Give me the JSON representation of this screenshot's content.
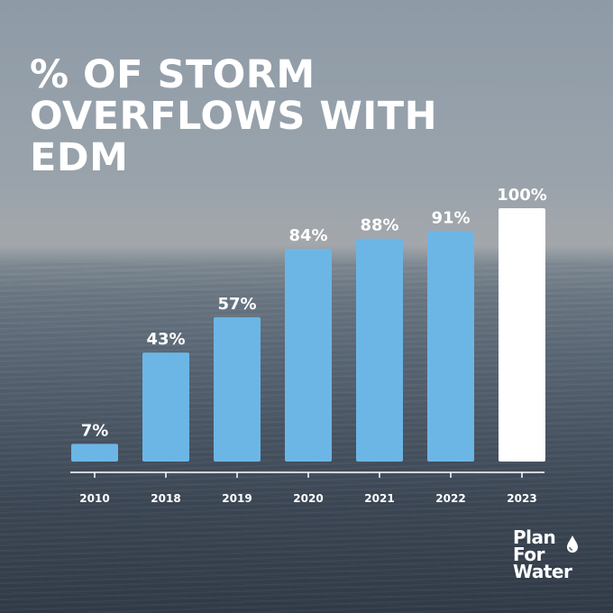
{
  "title_lines": [
    "% OF STORM",
    "OVERFLOWS WITH",
    "EDM"
  ],
  "logo": {
    "lines": [
      "Plan",
      "For",
      "Water"
    ],
    "icon": "water-drop-icon"
  },
  "colors": {
    "bar": "#6cb6e6",
    "highlight_bar": "#ffffff",
    "text": "#ffffff",
    "axis": "#ffffff"
  },
  "chart_data": {
    "type": "bar",
    "title": "% OF STORM OVERFLOWS WITH EDM",
    "categories": [
      "2010",
      "2018",
      "2019",
      "2020",
      "2021",
      "2022",
      "2023"
    ],
    "values": [
      7,
      43,
      57,
      84,
      88,
      91,
      100
    ],
    "data_labels": [
      "7%",
      "43%",
      "57%",
      "84%",
      "88%",
      "91%",
      "100%"
    ],
    "highlight_category": "2023",
    "xlabel": "",
    "ylabel": "",
    "ylim": [
      0,
      100
    ],
    "grid": false,
    "legend": "none"
  }
}
